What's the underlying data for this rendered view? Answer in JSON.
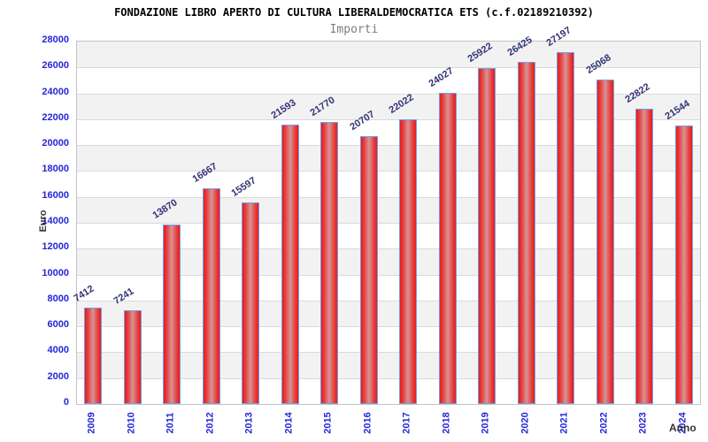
{
  "chart_data": {
    "type": "bar",
    "title": "FONDAZIONE LIBRO APERTO DI CULTURA LIBERALDEMOCRATICA ETS (c.f.02189210392)",
    "subtitle": "Importi",
    "ylabel": "Euro",
    "xlabel": "Anno",
    "categories": [
      "2009",
      "2010",
      "2011",
      "2012",
      "2013",
      "2014",
      "2015",
      "2016",
      "2017",
      "2018",
      "2019",
      "2020",
      "2021",
      "2022",
      "2023",
      "2024"
    ],
    "values": [
      7412,
      7241,
      13870,
      16667,
      15597,
      21593,
      21770,
      20707,
      22022,
      24027,
      25922,
      26425,
      27197,
      25068,
      22822,
      21544
    ],
    "ylim": [
      0,
      28000
    ],
    "ytick_step": 2000,
    "grid": "horizontal",
    "legend": "none",
    "colors": {
      "bar_edge_red": "#e61c1c",
      "bar_center": "#d49595",
      "bar_border_blue": "#6aa2e8",
      "axis_tick_label_blue": "#2626d9",
      "value_label_navy": "#333377",
      "band_gray": "#f2f2f2",
      "gridline_gray": "#d9d9d9",
      "subtitle_gray": "#7d7d7d"
    }
  }
}
